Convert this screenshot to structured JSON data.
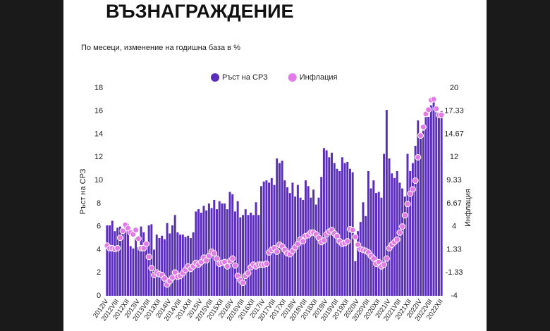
{
  "chart_data": {
    "type": "bar",
    "title": "ВЪЗНАГРАЖДЕНИЕ",
    "subtitle": "По месеци, изменение на годишна база в %",
    "ylabel": "Ръст на СРЗ",
    "y2label": "Инфлация",
    "ylim": [
      0,
      18
    ],
    "yticks": [
      0,
      2,
      4,
      6,
      8,
      10,
      12,
      14,
      16,
      18
    ],
    "y2lim": [
      -4,
      20
    ],
    "y2ticks": [
      -4,
      -1.33,
      1.33,
      4,
      6.67,
      9.33,
      12,
      14.67,
      17.33,
      20
    ],
    "legend": "top",
    "categories": [
      "2012IV",
      null,
      null,
      null,
      "2012VIII",
      null,
      null,
      null,
      "2012XII",
      null,
      null,
      null,
      "2013IV",
      null,
      null,
      null,
      "2013VIII",
      null,
      null,
      null,
      "2013XII",
      null,
      null,
      null,
      "2014IV",
      null,
      null,
      null,
      "2014VIII",
      null,
      null,
      null,
      "2014XII",
      null,
      null,
      null,
      "2015IV",
      null,
      null,
      null,
      "2015VIII",
      null,
      null,
      null,
      "2015XII",
      null,
      null,
      null,
      "2016IV",
      null,
      null,
      null,
      "2016VIII",
      null,
      null,
      null,
      "2016XII",
      null,
      null,
      null,
      "2017IV",
      null,
      null,
      null,
      "2017VIII",
      null,
      null,
      null,
      "2017XII",
      null,
      null,
      null,
      "2018IV",
      null,
      null,
      null,
      "2018VIII",
      null,
      null,
      null,
      "2018XII",
      null,
      null,
      null,
      "2019IV",
      null,
      null,
      null,
      "2019VIII",
      null,
      null,
      null,
      "2019XII",
      null,
      null,
      null,
      "2020IV",
      null,
      null,
      null,
      "2020VIII",
      null,
      null,
      null,
      "2020XII",
      null,
      null,
      null,
      "2021IV",
      null,
      null,
      null,
      "2021VIII",
      null,
      null,
      null,
      "2021XII",
      null,
      null,
      null,
      "2022IV",
      null,
      null,
      null,
      "2022VIII",
      null,
      null,
      null,
      "2022XII"
    ],
    "series": [
      {
        "name": "Ръст на СРЗ",
        "type": "bar",
        "color": "#5a2dbd",
        "values": [
          6.1,
          6.1,
          6.5,
          5.6,
          5.9,
          6.0,
          5.7,
          6.3,
          6.2,
          4.3,
          4.1,
          5.0,
          4.2,
          6.0,
          5.5,
          4.5,
          6.1,
          6.2,
          4.0,
          5.3,
          5.0,
          5.2,
          4.9,
          6.3,
          5.4,
          6.1,
          7.0,
          5.5,
          5.3,
          5.3,
          5.1,
          5.2,
          5.0,
          5.5,
          7.3,
          7.5,
          7.2,
          7.8,
          7.4,
          8.0,
          7.6,
          8.3,
          7.5,
          8.2,
          8.0,
          8.0,
          7.5,
          9.0,
          8.8,
          7.3,
          8.2,
          6.8,
          7.0,
          7.5,
          7.0,
          7.2,
          7.0,
          8.1,
          7.0,
          9.5,
          9.9,
          10.0,
          9.8,
          10.2,
          9.6,
          11.9,
          11.5,
          11.7,
          10.0,
          9.4,
          8.9,
          9.8,
          8.6,
          9.6,
          8.5,
          8.3,
          10.0,
          9.5,
          8.5,
          9.2,
          7.9,
          8.5,
          10.3,
          12.8,
          12.6,
          12.0,
          12.4,
          11.5,
          11.0,
          10.8,
          12.0,
          11.5,
          11.6,
          11.0,
          10.7,
          3.0,
          5.6,
          6.4,
          8.1,
          6.9,
          10.8,
          9.3,
          10.0,
          8.9,
          9.0,
          8.5,
          12.3,
          16.1,
          11.9,
          10.6,
          10.2,
          10.8,
          9.8,
          9.3,
          8.6,
          12.3,
          10.8,
          11.5,
          13.0,
          15.2,
          14.1,
          14.3,
          15.9,
          15.5,
          16.5,
          17.1,
          15.9,
          15.9,
          16.0
        ]
      },
      {
        "name": "Инфлация",
        "type": "scatter",
        "axis": "y2",
        "color": "#e27ae8",
        "values": [
          1.8,
          1.5,
          1.5,
          1.4,
          1.5,
          2.7,
          3.5,
          4.2,
          3.8,
          3.3,
          3.1,
          3.6,
          2.6,
          1.5,
          1.5,
          2.0,
          0.5,
          -0.8,
          -1.6,
          -1.3,
          -1.5,
          -1.6,
          -2.0,
          -2.7,
          -2.3,
          -1.9,
          -1.3,
          -1.8,
          -1.7,
          -1.4,
          -1.0,
          -0.6,
          -0.9,
          -0.6,
          -0.2,
          -0.4,
          -0.1,
          0.4,
          0.1,
          0.6,
          1.1,
          0.9,
          0.3,
          -0.3,
          -0.2,
          -0.1,
          -0.6,
          0.0,
          0.3,
          -0.5,
          -1.7,
          -2.2,
          -2.5,
          -1.7,
          -1.4,
          -0.7,
          -0.4,
          -0.6,
          -0.4,
          -0.4,
          -0.4,
          -0.3,
          1.0,
          1.3,
          1.5,
          1.1,
          1.9,
          1.7,
          1.3,
          0.9,
          0.8,
          1.2,
          1.6,
          2.0,
          2.5,
          2.3,
          2.9,
          3.0,
          3.3,
          3.3,
          3.1,
          2.7,
          2.2,
          2.4,
          3.1,
          3.4,
          3.6,
          3.2,
          2.9,
          2.3,
          2.0,
          2.1,
          2.3,
          3.7,
          3.6,
          2.8,
          1.9,
          1.4,
          1.3,
          1.2,
          1.0,
          0.6,
          0.3,
          -0.3,
          -0.1,
          -0.6,
          -0.4,
          0.3,
          1.5,
          1.9,
          2.2,
          2.5,
          3.3,
          4.0,
          5.3,
          6.6,
          7.8,
          8.3,
          9.3,
          12.0,
          14.5,
          15.5,
          17.0,
          17.5,
          18.6,
          18.7,
          17.6,
          16.9,
          16.9
        ]
      }
    ]
  }
}
